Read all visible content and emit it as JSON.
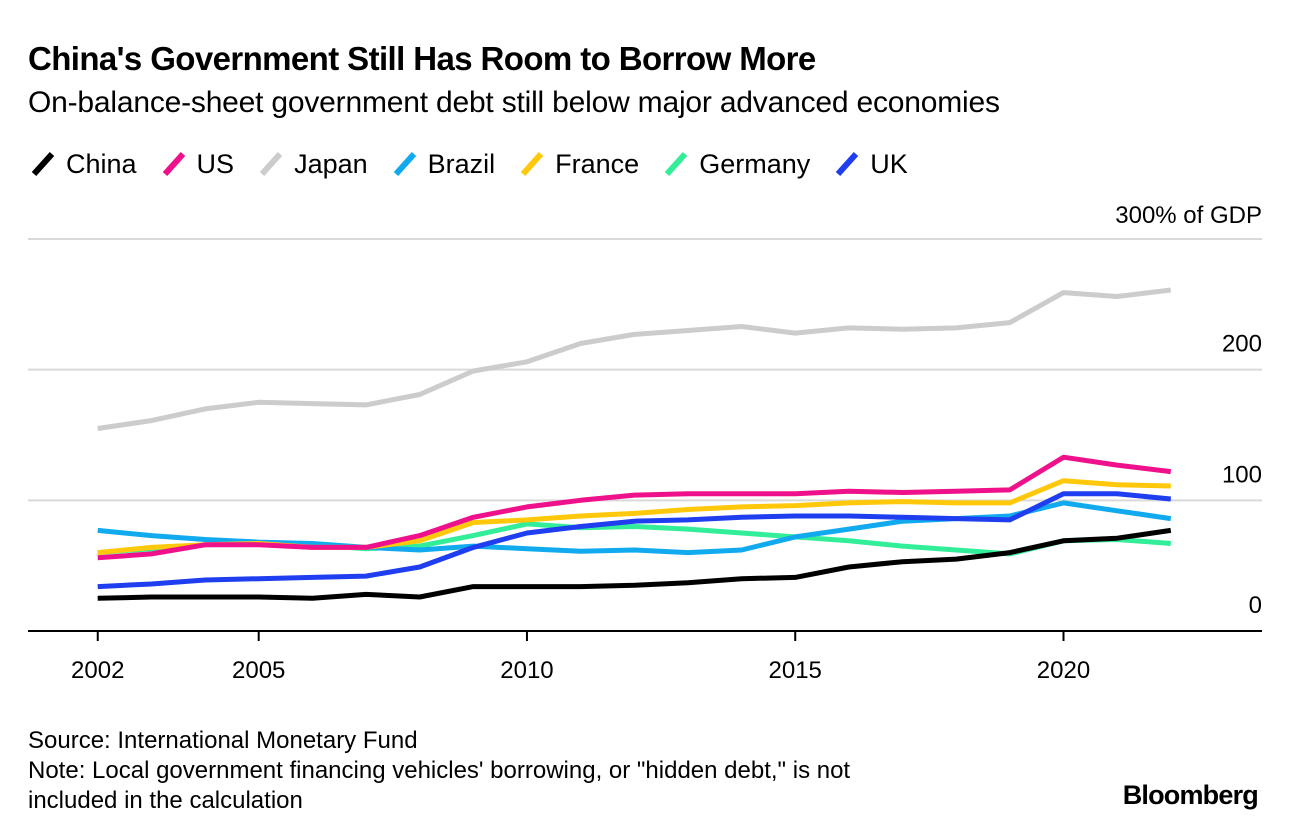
{
  "header": {
    "title": "China's Government Still Has Room to Borrow More",
    "subtitle": "On-balance-sheet government debt still below major advanced economies"
  },
  "chart_data": {
    "type": "line",
    "title": "China's Government Still Has Room to Borrow More",
    "subtitle": "On-balance-sheet government debt still below major advanced economies",
    "xlabel": "",
    "ylabel": "% of GDP",
    "unit_label": "300% of GDP",
    "xlim": [
      2000.7,
      2023.7
    ],
    "ylim": [
      0,
      300
    ],
    "x_ticks": [
      2002,
      2005,
      2010,
      2015,
      2020
    ],
    "x_tick_labels": [
      "2002",
      "2005",
      "2010",
      "2015",
      "2020"
    ],
    "y_ticks": [
      0,
      100,
      200,
      300
    ],
    "y_tick_labels": [
      "0",
      "100",
      "200",
      "300% of GDP"
    ],
    "grid": true,
    "legend_position": "top",
    "x": [
      2002,
      2003,
      2004,
      2005,
      2006,
      2007,
      2008,
      2009,
      2010,
      2011,
      2012,
      2013,
      2014,
      2015,
      2016,
      2017,
      2018,
      2019,
      2020,
      2021,
      2022
    ],
    "series": [
      {
        "name": "Japan",
        "color": "#cccccc",
        "values": [
          155,
          161,
          170,
          175,
          174,
          173,
          181,
          199,
          206,
          220,
          227,
          230,
          233,
          228,
          232,
          231,
          232,
          236,
          259,
          256,
          261
        ]
      },
      {
        "name": "Germany",
        "color": "#33ee99",
        "values": [
          60,
          63,
          66,
          67,
          66,
          63,
          65,
          73,
          82,
          79,
          80,
          78,
          75,
          72,
          69,
          65,
          62,
          59,
          69,
          70,
          67
        ]
      },
      {
        "name": "Brazil",
        "color": "#11aaee",
        "values": [
          77,
          73,
          70,
          68,
          67,
          64,
          62,
          65,
          63,
          61,
          62,
          60,
          62,
          72,
          78,
          84,
          86,
          88,
          98,
          92,
          86
        ]
      },
      {
        "name": "France",
        "color": "#ffc80a",
        "values": [
          60,
          64,
          66,
          67,
          64,
          64,
          69,
          83,
          85,
          88,
          90,
          93,
          95,
          96,
          98,
          99,
          98,
          98,
          115,
          112,
          111
        ]
      },
      {
        "name": "UK",
        "color": "#1e3ef0",
        "values": [
          34,
          36,
          39,
          40,
          41,
          42,
          49,
          64,
          75,
          80,
          84,
          85,
          87,
          88,
          88,
          87,
          86,
          85,
          105,
          105,
          101
        ]
      },
      {
        "name": "US",
        "color": "#ee118b",
        "values": [
          56,
          59,
          66,
          66,
          64,
          64,
          73,
          87,
          95,
          100,
          104,
          105,
          105,
          105,
          107,
          106,
          107,
          108,
          133,
          127,
          122
        ]
      },
      {
        "name": "China",
        "color": "#000000",
        "values": [
          25,
          26,
          26,
          26,
          25,
          28,
          26,
          34,
          34,
          34,
          35,
          37,
          40,
          41,
          49,
          53,
          55,
          60,
          69,
          71,
          77
        ]
      }
    ]
  },
  "legend": [
    {
      "name": "China",
      "color": "#000000"
    },
    {
      "name": "US",
      "color": "#ee118b"
    },
    {
      "name": "Japan",
      "color": "#cccccc"
    },
    {
      "name": "Brazil",
      "color": "#11aaee"
    },
    {
      "name": "France",
      "color": "#ffc80a"
    },
    {
      "name": "Germany",
      "color": "#33ee99"
    },
    {
      "name": "UK",
      "color": "#1e3ef0"
    }
  ],
  "footer": {
    "source": "Source: International Monetary Fund",
    "note_line1": "Note: Local government financing vehicles' borrowing, or \"hidden debt,\" is not",
    "note_line2": "included in the calculation",
    "brand": "Bloomberg"
  }
}
